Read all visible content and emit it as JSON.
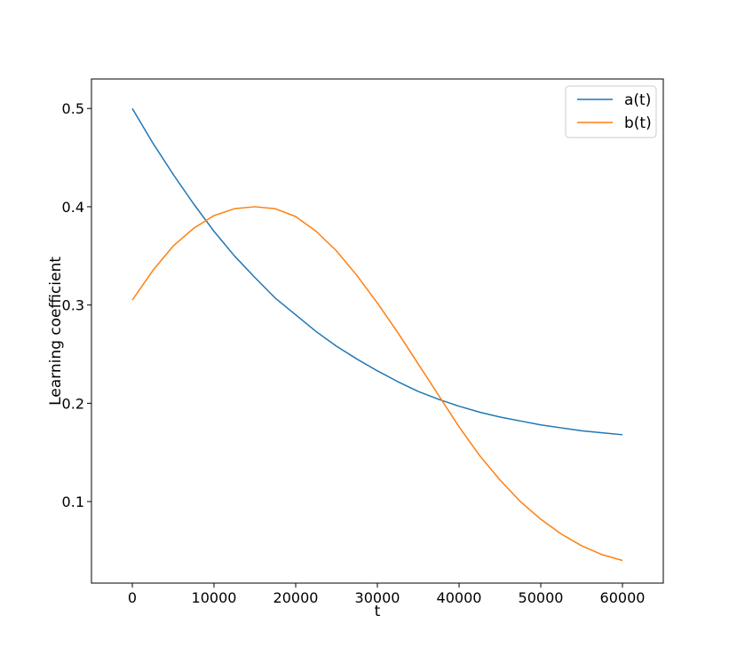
{
  "chart_data": {
    "type": "line",
    "title": "",
    "xlabel": "t",
    "ylabel": "Learning coefficient",
    "xlim": [
      -5000,
      65000
    ],
    "ylim": [
      0.017,
      0.53
    ],
    "xticks": [
      0,
      10000,
      20000,
      30000,
      40000,
      50000,
      60000
    ],
    "xtick_labels": [
      "0",
      "10000",
      "20000",
      "30000",
      "40000",
      "50000",
      "60000"
    ],
    "yticks": [
      0.1,
      0.2,
      0.3,
      0.4,
      0.5
    ],
    "ytick_labels": [
      "0.1",
      "0.2",
      "0.3",
      "0.4",
      "0.5"
    ],
    "grid": false,
    "legend": "top-right",
    "series": [
      {
        "name": "a(t)",
        "color": "#1f77b4",
        "x": [
          0,
          2500,
          5000,
          7500,
          10000,
          12500,
          15000,
          17500,
          20000,
          22500,
          25000,
          27500,
          30000,
          32500,
          35000,
          37500,
          40000,
          42500,
          45000,
          47500,
          50000,
          52500,
          55000,
          57500,
          60000
        ],
        "y": [
          0.5,
          0.465,
          0.433,
          0.403,
          0.375,
          0.35,
          0.328,
          0.307,
          0.29,
          0.273,
          0.258,
          0.245,
          0.233,
          0.222,
          0.212,
          0.204,
          0.197,
          0.191,
          0.186,
          0.182,
          0.178,
          0.175,
          0.172,
          0.17,
          0.168
        ]
      },
      {
        "name": "b(t)",
        "color": "#ff7f0e",
        "x": [
          0,
          2500,
          5000,
          7500,
          10000,
          12500,
          15000,
          17500,
          20000,
          22500,
          25000,
          27500,
          30000,
          32500,
          35000,
          37500,
          40000,
          42500,
          45000,
          47500,
          50000,
          52500,
          55000,
          57500,
          60000
        ],
        "y": [
          0.305,
          0.335,
          0.36,
          0.378,
          0.391,
          0.398,
          0.4,
          0.398,
          0.39,
          0.375,
          0.355,
          0.33,
          0.302,
          0.272,
          0.24,
          0.208,
          0.176,
          0.147,
          0.122,
          0.1,
          0.082,
          0.067,
          0.055,
          0.046,
          0.04
        ]
      }
    ]
  }
}
